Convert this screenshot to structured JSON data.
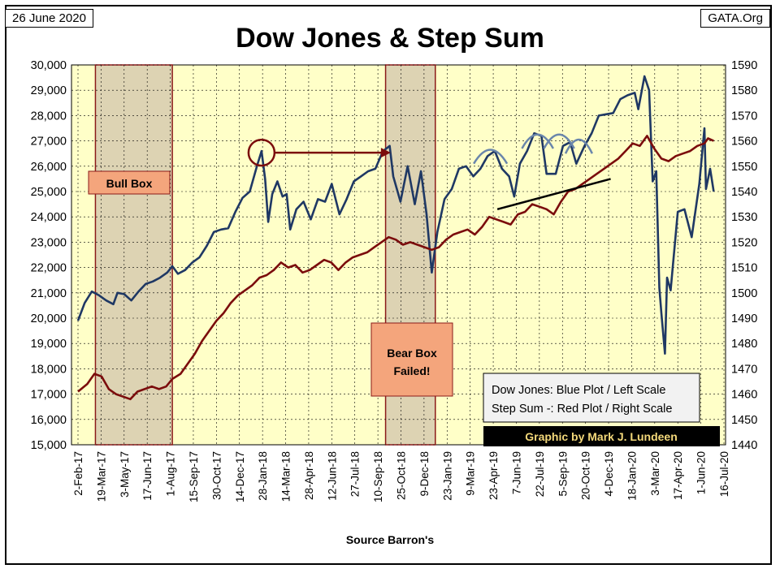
{
  "header": {
    "date": "26 June 2020",
    "source_site": "GATA.Org"
  },
  "chart_data": {
    "type": "line",
    "title": "Dow Jones & Step Sum",
    "xlabel": "Source Barron's",
    "x_ticks": [
      "2-Feb-17",
      "19-Mar-17",
      "3-May-17",
      "17-Jun-17",
      "1-Aug-17",
      "15-Sep-17",
      "30-Oct-17",
      "14-Dec-17",
      "28-Jan-18",
      "14-Mar-18",
      "28-Apr-18",
      "12-Jun-18",
      "27-Jul-18",
      "10-Sep-18",
      "25-Oct-18",
      "9-Dec-18",
      "23-Jan-19",
      "9-Mar-19",
      "23-Apr-19",
      "7-Jun-19",
      "22-Jul-19",
      "5-Sep-19",
      "20-Oct-19",
      "4-Dec-19",
      "18-Jan-20",
      "3-Mar-20",
      "17-Apr-20",
      "1-Jun-20",
      "16-Jul-20"
    ],
    "y_left": {
      "min": 15000,
      "max": 30000,
      "step": 1000,
      "ticks": [
        "15,000",
        "16,000",
        "17,000",
        "18,000",
        "19,000",
        "20,000",
        "21,000",
        "22,000",
        "23,000",
        "24,000",
        "25,000",
        "26,000",
        "27,000",
        "28,000",
        "29,000",
        "30,000"
      ]
    },
    "y_right": {
      "min": 1440,
      "max": 1590,
      "step": 10,
      "ticks": [
        "1440",
        "1450",
        "1460",
        "1470",
        "1480",
        "1490",
        "1500",
        "1510",
        "1520",
        "1530",
        "1540",
        "1550",
        "1560",
        "1570",
        "1580",
        "1590"
      ]
    },
    "colors": {
      "background": "#ffffc8",
      "blue": "#1f3864",
      "red": "#7b0c0c",
      "box_fill": "#ddd3b3",
      "box_border": "#8b1a1a",
      "label_fill": "#f4a57c"
    },
    "series": [
      {
        "name": "Dow Jones",
        "axis": "left",
        "color": "#1f3864",
        "points": [
          [
            "2017-02-02",
            19900
          ],
          [
            "2017-02-15",
            20600
          ],
          [
            "2017-03-01",
            21050
          ],
          [
            "2017-03-15",
            20900
          ],
          [
            "2017-03-29",
            20700
          ],
          [
            "2017-04-12",
            20550
          ],
          [
            "2017-04-20",
            21000
          ],
          [
            "2017-05-03",
            20950
          ],
          [
            "2017-05-17",
            20700
          ],
          [
            "2017-05-31",
            21050
          ],
          [
            "2017-06-14",
            21350
          ],
          [
            "2017-06-28",
            21450
          ],
          [
            "2017-07-12",
            21600
          ],
          [
            "2017-07-26",
            21800
          ],
          [
            "2017-08-05",
            22050
          ],
          [
            "2017-08-16",
            21750
          ],
          [
            "2017-08-30",
            21900
          ],
          [
            "2017-09-13",
            22200
          ],
          [
            "2017-09-27",
            22400
          ],
          [
            "2017-10-11",
            22850
          ],
          [
            "2017-10-25",
            23400
          ],
          [
            "2017-11-08",
            23500
          ],
          [
            "2017-11-22",
            23550
          ],
          [
            "2017-12-06",
            24200
          ],
          [
            "2017-12-20",
            24750
          ],
          [
            "2018-01-03",
            25000
          ],
          [
            "2018-01-17",
            26000
          ],
          [
            "2018-01-26",
            26600
          ],
          [
            "2018-02-02",
            25500
          ],
          [
            "2018-02-08",
            23800
          ],
          [
            "2018-02-16",
            24900
          ],
          [
            "2018-02-26",
            25400
          ],
          [
            "2018-03-08",
            24800
          ],
          [
            "2018-03-16",
            24900
          ],
          [
            "2018-03-23",
            23500
          ],
          [
            "2018-04-04",
            24300
          ],
          [
            "2018-04-18",
            24600
          ],
          [
            "2018-05-02",
            23900
          ],
          [
            "2018-05-16",
            24700
          ],
          [
            "2018-05-30",
            24600
          ],
          [
            "2018-06-12",
            25300
          ],
          [
            "2018-06-27",
            24100
          ],
          [
            "2018-07-11",
            24700
          ],
          [
            "2018-07-25",
            25400
          ],
          [
            "2018-08-08",
            25600
          ],
          [
            "2018-08-22",
            25800
          ],
          [
            "2018-09-05",
            25900
          ],
          [
            "2018-09-20",
            26600
          ],
          [
            "2018-10-03",
            26800
          ],
          [
            "2018-10-10",
            25600
          ],
          [
            "2018-10-24",
            24600
          ],
          [
            "2018-11-07",
            26000
          ],
          [
            "2018-11-21",
            24500
          ],
          [
            "2018-12-03",
            25800
          ],
          [
            "2018-12-14",
            24100
          ],
          [
            "2018-12-24",
            21800
          ],
          [
            "2019-01-04",
            23400
          ],
          [
            "2019-01-18",
            24700
          ],
          [
            "2019-02-01",
            25100
          ],
          [
            "2019-02-15",
            25900
          ],
          [
            "2019-03-01",
            26000
          ],
          [
            "2019-03-15",
            25600
          ],
          [
            "2019-03-29",
            25900
          ],
          [
            "2019-04-12",
            26400
          ],
          [
            "2019-04-26",
            26600
          ],
          [
            "2019-05-10",
            25900
          ],
          [
            "2019-05-24",
            25600
          ],
          [
            "2019-06-03",
            24800
          ],
          [
            "2019-06-14",
            26100
          ],
          [
            "2019-06-28",
            26600
          ],
          [
            "2019-07-12",
            27300
          ],
          [
            "2019-07-26",
            27200
          ],
          [
            "2019-08-05",
            25700
          ],
          [
            "2019-08-23",
            25700
          ],
          [
            "2019-09-06",
            26800
          ],
          [
            "2019-09-20",
            26950
          ],
          [
            "2019-10-02",
            26100
          ],
          [
            "2019-10-18",
            26800
          ],
          [
            "2019-11-01",
            27300
          ],
          [
            "2019-11-15",
            28000
          ],
          [
            "2019-11-29",
            28050
          ],
          [
            "2019-12-13",
            28100
          ],
          [
            "2019-12-27",
            28650
          ],
          [
            "2020-01-10",
            28800
          ],
          [
            "2020-01-24",
            28900
          ],
          [
            "2020-01-31",
            28250
          ],
          [
            "2020-02-12",
            29550
          ],
          [
            "2020-02-21",
            29000
          ],
          [
            "2020-02-28",
            25400
          ],
          [
            "2020-03-06",
            25800
          ],
          [
            "2020-03-12",
            21200
          ],
          [
            "2020-03-16",
            20200
          ],
          [
            "2020-03-23",
            18600
          ],
          [
            "2020-03-27",
            21600
          ],
          [
            "2020-04-03",
            21100
          ],
          [
            "2020-04-17",
            24200
          ],
          [
            "2020-04-30",
            24300
          ],
          [
            "2020-05-14",
            23200
          ],
          [
            "2020-05-29",
            25300
          ],
          [
            "2020-06-08",
            27500
          ],
          [
            "2020-06-11",
            25100
          ],
          [
            "2020-06-19",
            25900
          ],
          [
            "2020-06-26",
            25000
          ]
        ]
      },
      {
        "name": "Step Sum",
        "axis": "right",
        "color": "#7b0c0c",
        "points": [
          [
            "2017-02-02",
            1461
          ],
          [
            "2017-02-20",
            1464
          ],
          [
            "2017-03-06",
            1468
          ],
          [
            "2017-03-20",
            1467
          ],
          [
            "2017-04-03",
            1462
          ],
          [
            "2017-04-17",
            1460
          ],
          [
            "2017-05-01",
            1459
          ],
          [
            "2017-05-15",
            1458
          ],
          [
            "2017-05-29",
            1461
          ],
          [
            "2017-06-12",
            1462
          ],
          [
            "2017-06-26",
            1463
          ],
          [
            "2017-07-10",
            1462
          ],
          [
            "2017-07-24",
            1463
          ],
          [
            "2017-08-05",
            1466
          ],
          [
            "2017-08-21",
            1468
          ],
          [
            "2017-09-04",
            1472
          ],
          [
            "2017-09-18",
            1476
          ],
          [
            "2017-10-02",
            1481
          ],
          [
            "2017-10-16",
            1485
          ],
          [
            "2017-10-30",
            1489
          ],
          [
            "2017-11-13",
            1492
          ],
          [
            "2017-11-27",
            1496
          ],
          [
            "2017-12-11",
            1499
          ],
          [
            "2017-12-25",
            1501
          ],
          [
            "2018-01-08",
            1503
          ],
          [
            "2018-01-22",
            1506
          ],
          [
            "2018-02-05",
            1507
          ],
          [
            "2018-02-19",
            1509
          ],
          [
            "2018-03-05",
            1512
          ],
          [
            "2018-03-19",
            1510
          ],
          [
            "2018-04-02",
            1511
          ],
          [
            "2018-04-16",
            1508
          ],
          [
            "2018-04-30",
            1509
          ],
          [
            "2018-05-14",
            1511
          ],
          [
            "2018-05-28",
            1513
          ],
          [
            "2018-06-11",
            1512
          ],
          [
            "2018-06-25",
            1509
          ],
          [
            "2018-07-09",
            1512
          ],
          [
            "2018-07-23",
            1514
          ],
          [
            "2018-08-06",
            1515
          ],
          [
            "2018-08-20",
            1516
          ],
          [
            "2018-09-03",
            1518
          ],
          [
            "2018-09-17",
            1520
          ],
          [
            "2018-10-01",
            1522
          ],
          [
            "2018-10-15",
            1521
          ],
          [
            "2018-10-29",
            1519
          ],
          [
            "2018-11-12",
            1520
          ],
          [
            "2018-11-26",
            1519
          ],
          [
            "2018-12-10",
            1518
          ],
          [
            "2018-12-24",
            1517
          ],
          [
            "2019-01-07",
            1518
          ],
          [
            "2019-01-21",
            1521
          ],
          [
            "2019-02-04",
            1523
          ],
          [
            "2019-02-18",
            1524
          ],
          [
            "2019-03-04",
            1525
          ],
          [
            "2019-03-18",
            1523
          ],
          [
            "2019-04-01",
            1526
          ],
          [
            "2019-04-15",
            1530
          ],
          [
            "2019-04-29",
            1529
          ],
          [
            "2019-05-13",
            1528
          ],
          [
            "2019-05-27",
            1527
          ],
          [
            "2019-06-10",
            1531
          ],
          [
            "2019-06-24",
            1532
          ],
          [
            "2019-07-08",
            1535
          ],
          [
            "2019-07-22",
            1534
          ],
          [
            "2019-08-05",
            1533
          ],
          [
            "2019-08-19",
            1531
          ],
          [
            "2019-09-02",
            1536
          ],
          [
            "2019-09-16",
            1540
          ],
          [
            "2019-09-30",
            1541
          ],
          [
            "2019-10-14",
            1543
          ],
          [
            "2019-10-28",
            1545
          ],
          [
            "2019-11-11",
            1547
          ],
          [
            "2019-11-25",
            1549
          ],
          [
            "2019-12-09",
            1551
          ],
          [
            "2019-12-23",
            1553
          ],
          [
            "2020-01-06",
            1556
          ],
          [
            "2020-01-20",
            1559
          ],
          [
            "2020-02-03",
            1558
          ],
          [
            "2020-02-17",
            1562
          ],
          [
            "2020-03-02",
            1557
          ],
          [
            "2020-03-16",
            1553
          ],
          [
            "2020-03-30",
            1552
          ],
          [
            "2020-04-13",
            1554
          ],
          [
            "2020-04-27",
            1555
          ],
          [
            "2020-05-11",
            1556
          ],
          [
            "2020-05-25",
            1558
          ],
          [
            "2020-06-08",
            1559
          ],
          [
            "2020-06-15",
            1561
          ],
          [
            "2020-06-26",
            1560
          ]
        ]
      }
    ],
    "shaded_boxes": [
      {
        "start": "2017-03-08",
        "end": "2017-08-05",
        "label": "Bull Box"
      },
      {
        "start": "2018-09-25",
        "end": "2018-12-31",
        "label": "Bear Box Failed!"
      }
    ],
    "legend": {
      "line1": "Dow Jones: Blue Plot / Left Scale",
      "line2": "Step Sum -: Red Plot / Right Scale",
      "placement": "bottom-right"
    },
    "credit": "Graphic by Mark J. Lundeen",
    "annotations": {
      "arrow": {
        "from": [
          "2018-01-26",
          26600
        ],
        "to": [
          "2018-10-05",
          26600
        ]
      },
      "trendline": {
        "from": [
          "2019-05-01",
          24300
        ],
        "to": [
          "2019-12-08",
          25500
        ]
      },
      "arcs": [
        {
          "from": "2019-03-16",
          "to": "2019-05-20",
          "peak": 26600
        },
        {
          "from": "2019-06-18",
          "to": "2019-08-18",
          "peak": 27200
        },
        {
          "from": "2019-07-31",
          "to": "2019-09-28",
          "peak": 27200
        },
        {
          "from": "2019-09-11",
          "to": "2019-11-02",
          "peak": 27000
        }
      ]
    }
  }
}
